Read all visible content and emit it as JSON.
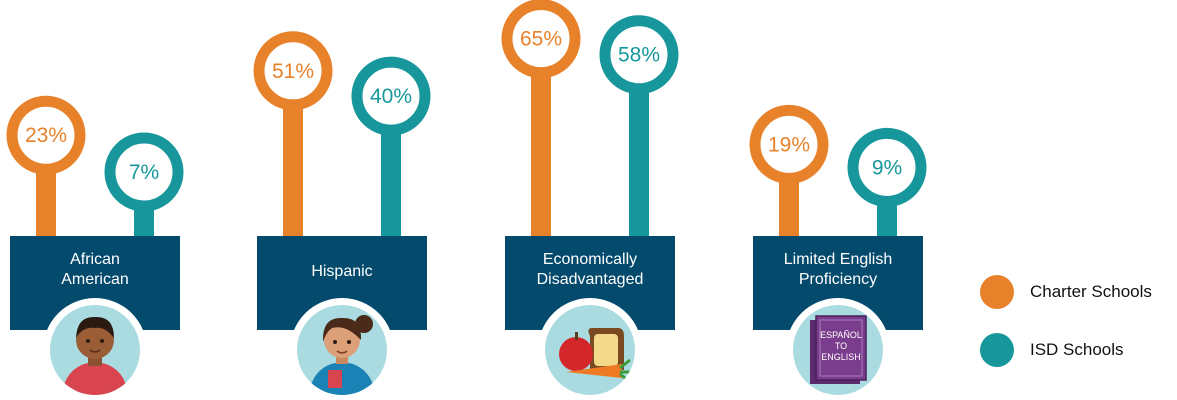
{
  "colors": {
    "charter": "#e8822a",
    "isd": "#17979c",
    "label_box": "#034a6c",
    "icon_bg": "#a9dbe1"
  },
  "legend": {
    "charter": "Charter Schools",
    "isd": "ISD Schools"
  },
  "chart_data": {
    "type": "lollipop",
    "categories": [
      "African American",
      "Hispanic",
      "Economically Disadvantaged",
      "Limited English Proficiency"
    ],
    "category_lines": [
      [
        "African",
        "American"
      ],
      [
        "Hispanic"
      ],
      [
        "Economically",
        "Disadvantaged"
      ],
      [
        "Limited English",
        "Proficiency"
      ]
    ],
    "icons": [
      "boy-icon",
      "girl-icon",
      "food-icon",
      "book-icon"
    ],
    "book_text": [
      "ESPAÑOL",
      "TO",
      "ENGLISH"
    ],
    "series": [
      {
        "name": "Charter Schools",
        "key": "charter",
        "values": [
          23,
          51,
          65,
          19
        ],
        "labels": [
          "23%",
          "51%",
          "65%",
          "19%"
        ]
      },
      {
        "name": "ISD Schools",
        "key": "isd",
        "values": [
          7,
          40,
          58,
          9
        ],
        "labels": [
          "7%",
          "40%",
          "58%",
          "9%"
        ]
      }
    ]
  }
}
